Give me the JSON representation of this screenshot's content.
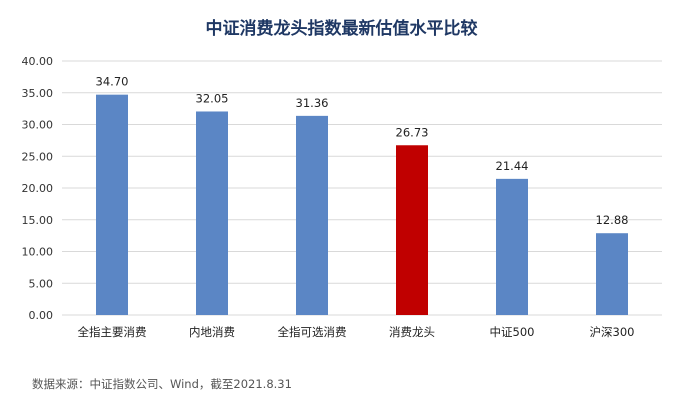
{
  "chart_data": {
    "type": "bar",
    "title": "中证消费龙头指数最新估值水平比较",
    "categories": [
      "全指主要消费",
      "内地消费",
      "全指可选消费",
      "消费龙头",
      "中证500",
      "沪深300"
    ],
    "values": [
      34.7,
      32.05,
      31.36,
      26.73,
      21.44,
      12.88
    ],
    "value_labels": [
      "34.70",
      "32.05",
      "31.36",
      "26.73",
      "21.44",
      "12.88"
    ],
    "y_ticks": [
      "0.00",
      "5.00",
      "10.00",
      "15.00",
      "20.00",
      "25.00",
      "30.00",
      "35.00",
      "40.00"
    ],
    "ylim": [
      0,
      40
    ],
    "xlabel": "",
    "ylabel": "",
    "grid": true,
    "legend": "none",
    "bar_colors": [
      "#5b86c5",
      "#5b86c5",
      "#5b86c5",
      "#c00000",
      "#5b86c5",
      "#5b86c5"
    ],
    "gridline_color": "#d9d9d9"
  },
  "source_note": "数据来源：中证指数公司、Wind，截至2021.8.31"
}
